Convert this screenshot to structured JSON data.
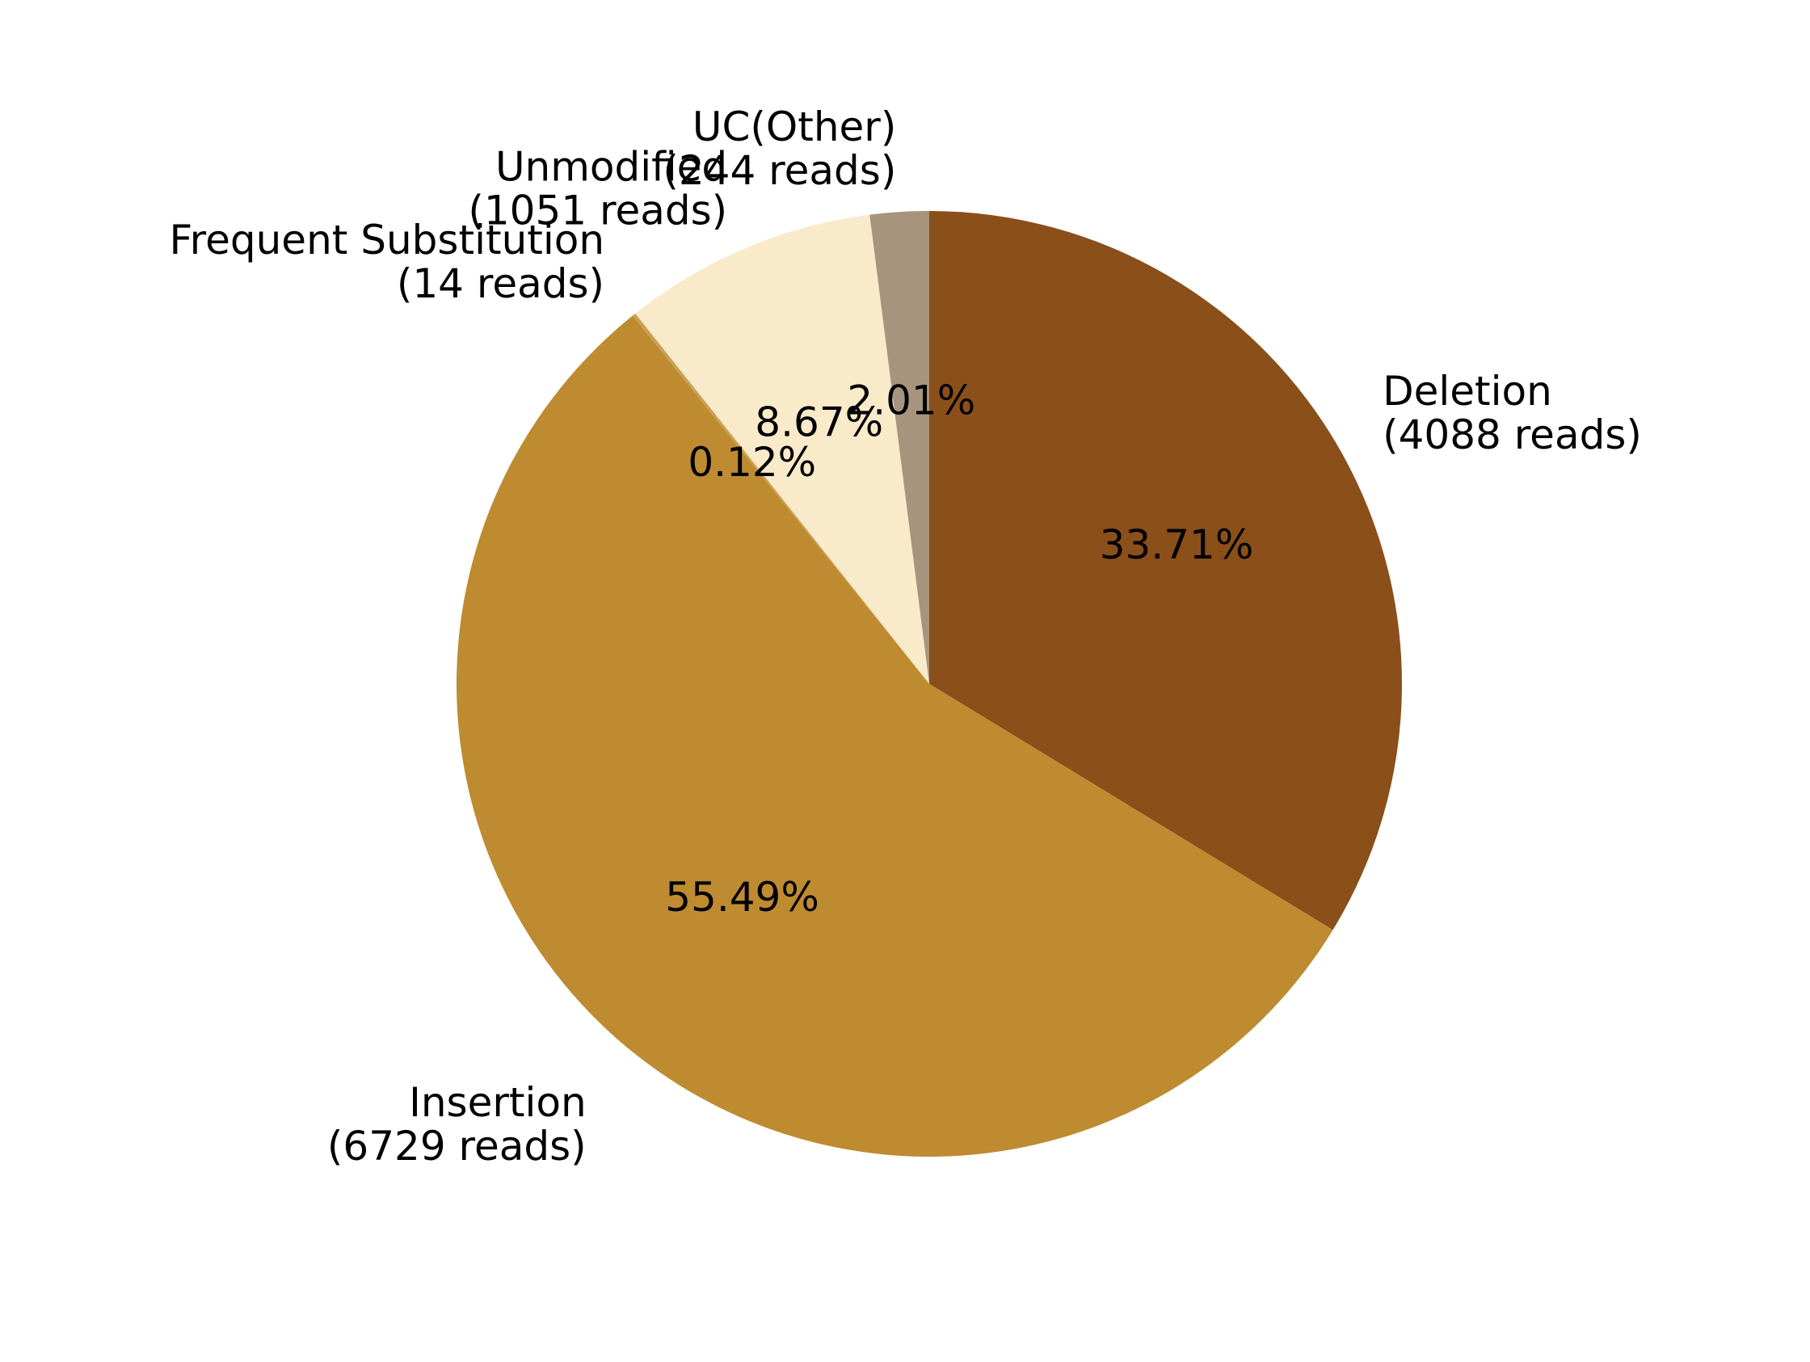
{
  "chart_data": {
    "type": "pie",
    "title": "",
    "slices": [
      {
        "name": "Deletion",
        "reads_label": "(4088 reads)",
        "reads": 4088,
        "percent": 33.71,
        "percent_label": "33.71%",
        "color": "#8b4f1a"
      },
      {
        "name": "Insertion",
        "reads_label": "(6729 reads)",
        "reads": 6729,
        "percent": 55.49,
        "percent_label": "55.49%",
        "color": "#be8b31"
      },
      {
        "name": "Frequent Substitution",
        "reads_label": "(14 reads)",
        "reads": 14,
        "percent": 0.12,
        "percent_label": "0.12%",
        "color": "#c9a055"
      },
      {
        "name": "Unmodified",
        "reads_label": "(1051 reads)",
        "reads": 1051,
        "percent": 8.67,
        "percent_label": "8.67%",
        "color": "#f9eaca"
      },
      {
        "name": "UC(Other)",
        "reads_label": "(244 reads)",
        "reads": 244,
        "percent": 2.01,
        "percent_label": "2.01%",
        "color": "#a6957c"
      }
    ],
    "start_angle_deg": 90,
    "direction": "clockwise",
    "legend": "none"
  }
}
